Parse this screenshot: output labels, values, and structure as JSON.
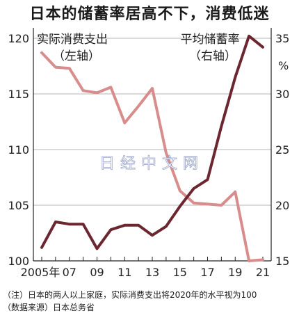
{
  "title": "日本的储蓄率居高不下，消费低迷",
  "watermark": "日经中文网",
  "footnotes": [
    "（注）日本的两人以上家庭，实际消费支出将2020年的水平视为100",
    "（数据来源）日本总务省"
  ],
  "chart_data": {
    "type": "line",
    "x": [
      2005,
      2006,
      2007,
      2008,
      2009,
      2010,
      2011,
      2012,
      2013,
      2014,
      2015,
      2016,
      2017,
      2018,
      2019,
      2020,
      2021
    ],
    "x_tick_labels": [
      "2005年",
      "07",
      "09",
      "11",
      "13",
      "15",
      "17",
      "19",
      "21"
    ],
    "x_tick_values": [
      2005,
      2007,
      2009,
      2011,
      2013,
      2015,
      2017,
      2019,
      2021
    ],
    "y_left": {
      "ylim": [
        100,
        120
      ],
      "ticks": [
        "100",
        "105",
        "110",
        "115",
        "120"
      ]
    },
    "y_right": {
      "ylim": [
        15,
        35
      ],
      "ticks": [
        "15",
        "20",
        "25",
        "30",
        "35"
      ],
      "unit": "%"
    },
    "series": [
      {
        "name": "实际消费支出",
        "axis_label": "（左轴）",
        "axis": "left",
        "color": "#d98c8c",
        "values": [
          118.7,
          117.4,
          117.3,
          115.3,
          115.1,
          115.6,
          112.4,
          113.9,
          115.5,
          109.7,
          106.3,
          105.2,
          105.1,
          105.0,
          106.2,
          100.0,
          100.1
        ]
      },
      {
        "name": "平均储蓄率",
        "axis_label": "（右轴）",
        "axis": "right",
        "color": "#6b2630",
        "values": [
          16.2,
          18.5,
          18.3,
          18.3,
          16.1,
          17.8,
          18.2,
          18.2,
          17.3,
          18.1,
          19.9,
          21.5,
          22.3,
          27.1,
          31.5,
          35.2,
          34.2
        ]
      }
    ]
  }
}
